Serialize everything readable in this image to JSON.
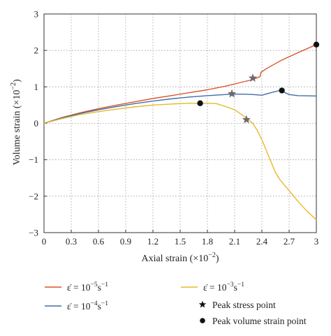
{
  "chart_data": {
    "type": "line",
    "xlabel": "Axial strain (×10",
    "xlabel_exp": "−2",
    "xlabel_close": ")",
    "ylabel": "Volume strain (×10",
    "ylabel_exp": "−2",
    "ylabel_close": ")",
    "xlim": [
      0,
      3
    ],
    "ylim": [
      -3,
      3
    ],
    "grid": true,
    "grid_style": "dotted",
    "x_ticks": [
      0,
      0.3,
      0.6,
      0.9,
      1.2,
      1.5,
      1.8,
      2.1,
      2.4,
      2.7,
      3
    ],
    "x_tick_labels": [
      "0",
      "0.3",
      "0.6",
      "0.9",
      "1.2",
      "1.5",
      "1.8",
      "2.1",
      "2.4",
      "2.7",
      "3"
    ],
    "y_ticks": [
      -3,
      -2,
      -1,
      0,
      1,
      2,
      3
    ],
    "y_tick_labels": [
      "−3",
      "−2",
      "−1",
      "0",
      "1",
      "2",
      "3"
    ],
    "legend_placement": "below plot",
    "series": [
      {
        "name": "ε̇ = 10^-5 s^-1",
        "legend_base": "ε̇ = 10",
        "legend_exp1": "−5",
        "legend_mid": "s",
        "legend_exp2": "−1",
        "color": "#d9572c",
        "x": [
          0,
          0.2,
          0.4,
          0.6,
          0.8,
          1.0,
          1.2,
          1.4,
          1.6,
          1.8,
          2.0,
          2.2,
          2.3,
          2.38,
          2.39,
          2.45,
          2.6,
          2.8,
          3.0
        ],
        "y": [
          0,
          0.16,
          0.29,
          0.4,
          0.5,
          0.59,
          0.68,
          0.76,
          0.84,
          0.92,
          1.02,
          1.14,
          1.2,
          1.28,
          1.4,
          1.5,
          1.71,
          1.94,
          2.16
        ]
      },
      {
        "name": "ε̇ = 10^-4 s^-1",
        "legend_base": "ε̇ = 10",
        "legend_exp1": "−4",
        "legend_mid": "s",
        "legend_exp2": "−1",
        "color": "#3f6fa8",
        "x": [
          0,
          0.2,
          0.4,
          0.6,
          0.8,
          1.0,
          1.2,
          1.4,
          1.6,
          1.8,
          2.0,
          2.1,
          2.2,
          2.3,
          2.4,
          2.5,
          2.6,
          2.7,
          2.8,
          3.0
        ],
        "y": [
          0,
          0.15,
          0.27,
          0.37,
          0.46,
          0.54,
          0.61,
          0.67,
          0.72,
          0.76,
          0.79,
          0.8,
          0.8,
          0.79,
          0.77,
          0.84,
          0.9,
          0.79,
          0.76,
          0.75
        ]
      },
      {
        "name": "ε̇ = 10^-3 s^-1",
        "legend_base": "ε̇ = 10",
        "legend_exp1": "−3",
        "legend_mid": "s",
        "legend_exp2": "−1",
        "color": "#e6b92a",
        "x": [
          0,
          0.2,
          0.4,
          0.6,
          0.8,
          1.0,
          1.2,
          1.4,
          1.6,
          1.8,
          1.9,
          2.0,
          2.1,
          2.2,
          2.25,
          2.3,
          2.35,
          2.4,
          2.45,
          2.5,
          2.55,
          2.6,
          2.7,
          2.8,
          2.9,
          3.0
        ],
        "y": [
          0,
          0.13,
          0.24,
          0.32,
          0.39,
          0.45,
          0.5,
          0.53,
          0.55,
          0.55,
          0.54,
          0.46,
          0.37,
          0.2,
          0.1,
          0.0,
          -0.2,
          -0.45,
          -0.75,
          -1.05,
          -1.35,
          -1.55,
          -1.85,
          -2.15,
          -2.42,
          -2.65
        ]
      }
    ],
    "markers": [
      {
        "type": "star",
        "series": 0,
        "x": 2.3,
        "y": 1.24
      },
      {
        "type": "star",
        "series": 1,
        "x": 2.07,
        "y": 0.81
      },
      {
        "type": "star",
        "series": 2,
        "x": 2.23,
        "y": 0.1
      },
      {
        "type": "dot",
        "series": 0,
        "x": 3.0,
        "y": 2.16
      },
      {
        "type": "dot",
        "series": 1,
        "x": 2.62,
        "y": 0.9
      },
      {
        "type": "dot",
        "series": 2,
        "x": 1.72,
        "y": 0.55
      }
    ],
    "legend_markers": [
      {
        "type": "star",
        "label": "Peak stress point"
      },
      {
        "type": "dot",
        "label": "Peak volume strain point"
      }
    ]
  }
}
